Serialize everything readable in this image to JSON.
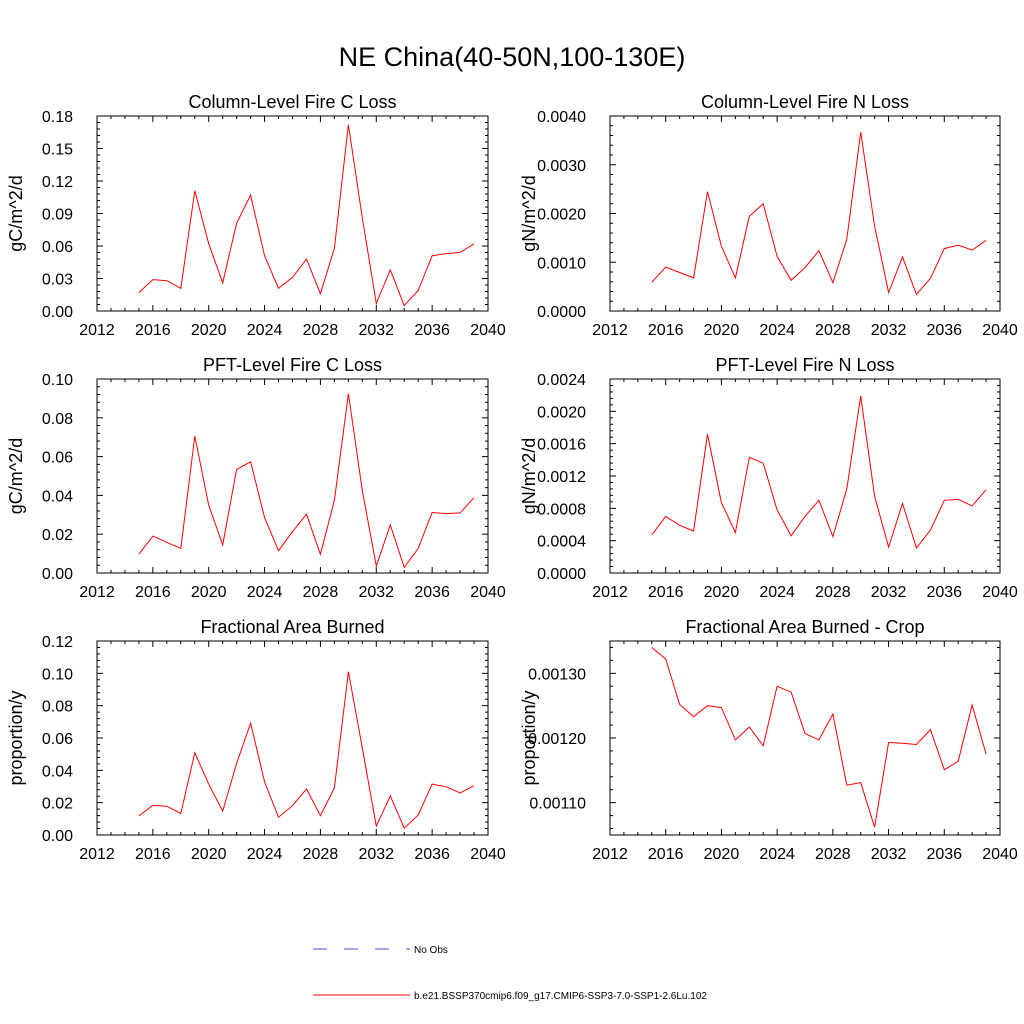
{
  "figure": {
    "title": "NE China(40-50N,100-130E)"
  },
  "legend": {
    "items": [
      {
        "label": "No Obs",
        "color": "#4a4ad6",
        "style": "dashed"
      },
      {
        "label": "b.e21.BSSP370cmip6.f09_g17.CMIP6-SSP3-7.0-SSP1-2.6Lu.102",
        "color": "#ff0000",
        "style": "solid"
      }
    ]
  },
  "chart_data": [
    {
      "type": "line",
      "title": "Column-Level Fire C Loss",
      "ylabel": "gC/m^2/d",
      "xlabel": "",
      "xlim": [
        2012,
        2040
      ],
      "ylim": [
        0,
        0.18
      ],
      "xticks": [
        "2012",
        "2016",
        "2020",
        "2024",
        "2028",
        "2032",
        "2036",
        "2040"
      ],
      "yticks": [
        "0.00",
        "0.03",
        "0.06",
        "0.09",
        "0.12",
        "0.15",
        "0.18"
      ],
      "grid": false,
      "series": [
        {
          "color": "#ff0000",
          "x": [
            2015,
            2016,
            2017,
            2018,
            2019,
            2020,
            2021,
            2022,
            2023,
            2024,
            2025,
            2026,
            2027,
            2028,
            2029,
            2030,
            2031,
            2032,
            2033,
            2034,
            2035,
            2036,
            2037,
            2038,
            2039
          ],
          "y": [
            0.017,
            0.029,
            0.028,
            0.021,
            0.111,
            0.062,
            0.026,
            0.081,
            0.107,
            0.051,
            0.021,
            0.031,
            0.048,
            0.016,
            0.058,
            0.172,
            0.086,
            0.007,
            0.038,
            0.005,
            0.019,
            0.051,
            0.053,
            0.054,
            0.062
          ]
        }
      ]
    },
    {
      "type": "line",
      "title": "Column-Level Fire N Loss",
      "ylabel": "gN/m^2/d",
      "xlabel": "",
      "xlim": [
        2012,
        2040
      ],
      "ylim": [
        0,
        0.004
      ],
      "xticks": [
        "2012",
        "2016",
        "2020",
        "2024",
        "2028",
        "2032",
        "2036",
        "2040"
      ],
      "yticks": [
        "0.0000",
        "0.0010",
        "0.0020",
        "0.0030",
        "0.0040"
      ],
      "grid": false,
      "series": [
        {
          "color": "#ff0000",
          "x": [
            2015,
            2016,
            2017,
            2018,
            2019,
            2020,
            2021,
            2022,
            2023,
            2024,
            2025,
            2026,
            2027,
            2028,
            2029,
            2030,
            2031,
            2032,
            2033,
            2034,
            2035,
            2036,
            2037,
            2038,
            2039
          ],
          "y": [
            0.00059,
            0.0009,
            0.00079,
            0.00068,
            0.00245,
            0.00133,
            0.00068,
            0.00194,
            0.0022,
            0.00112,
            0.00063,
            0.00089,
            0.00124,
            0.00058,
            0.00147,
            0.00367,
            0.00174,
            0.00038,
            0.00111,
            0.00034,
            0.00067,
            0.00128,
            0.00135,
            0.00125,
            0.00145
          ]
        }
      ]
    },
    {
      "type": "line",
      "title": "PFT-Level Fire C Loss",
      "ylabel": "gC/m^2/d",
      "xlabel": "",
      "xlim": [
        2012,
        2040
      ],
      "ylim": [
        0,
        0.1
      ],
      "xticks": [
        "2012",
        "2016",
        "2020",
        "2024",
        "2028",
        "2032",
        "2036",
        "2040"
      ],
      "yticks": [
        "0.00",
        "0.02",
        "0.04",
        "0.06",
        "0.08",
        "0.10"
      ],
      "grid": false,
      "series": [
        {
          "color": "#ff0000",
          "x": [
            2015,
            2016,
            2017,
            2018,
            2019,
            2020,
            2021,
            2022,
            2023,
            2024,
            2025,
            2026,
            2027,
            2028,
            2029,
            2030,
            2031,
            2032,
            2033,
            2034,
            2035,
            2036,
            2037,
            2038,
            2039
          ],
          "y": [
            0.0097,
            0.019,
            0.0158,
            0.0127,
            0.0705,
            0.035,
            0.0145,
            0.0534,
            0.0573,
            0.0285,
            0.0115,
            0.0213,
            0.0303,
            0.0096,
            0.0375,
            0.0925,
            0.0425,
            0.0036,
            0.0248,
            0.0029,
            0.0127,
            0.0312,
            0.0306,
            0.031,
            0.0388
          ]
        }
      ]
    },
    {
      "type": "line",
      "title": "PFT-Level Fire N Loss",
      "ylabel": "gN/m^2/d",
      "xlabel": "",
      "xlim": [
        2012,
        2040
      ],
      "ylim": [
        0,
        0.0024
      ],
      "xticks": [
        "2012",
        "2016",
        "2020",
        "2024",
        "2028",
        "2032",
        "2036",
        "2040"
      ],
      "yticks": [
        "0.0000",
        "0.0004",
        "0.0008",
        "0.0012",
        "0.0016",
        "0.0020",
        "0.0024"
      ],
      "grid": false,
      "series": [
        {
          "color": "#ff0000",
          "x": [
            2015,
            2016,
            2017,
            2018,
            2019,
            2020,
            2021,
            2022,
            2023,
            2024,
            2025,
            2026,
            2027,
            2028,
            2029,
            2030,
            2031,
            2032,
            2033,
            2034,
            2035,
            2036,
            2037,
            2038,
            2039
          ],
          "y": [
            0.00047,
            0.0007,
            0.00059,
            0.00052,
            0.00172,
            0.00087,
            0.0005,
            0.00143,
            0.00136,
            0.00078,
            0.00046,
            0.0007,
            0.0009,
            0.00045,
            0.00104,
            0.00219,
            0.00095,
            0.00032,
            0.00086,
            0.00031,
            0.00053,
            0.0009,
            0.00091,
            0.00083,
            0.00103
          ]
        }
      ]
    },
    {
      "type": "line",
      "title": "Fractional Area Burned",
      "ylabel": "proportion/y",
      "xlabel": "",
      "xlim": [
        2012,
        2040
      ],
      "ylim": [
        0,
        0.12
      ],
      "xticks": [
        "2012",
        "2016",
        "2020",
        "2024",
        "2028",
        "2032",
        "2036",
        "2040"
      ],
      "yticks": [
        "0.00",
        "0.02",
        "0.04",
        "0.06",
        "0.08",
        "0.10",
        "0.12"
      ],
      "grid": false,
      "series": [
        {
          "color": "#ff0000",
          "x": [
            2015,
            2016,
            2017,
            2018,
            2019,
            2020,
            2021,
            2022,
            2023,
            2024,
            2025,
            2026,
            2027,
            2028,
            2029,
            2030,
            2031,
            2032,
            2033,
            2034,
            2035,
            2036,
            2037,
            2038,
            2039
          ],
          "y": [
            0.0118,
            0.0183,
            0.0178,
            0.0133,
            0.0509,
            0.0315,
            0.0148,
            0.0443,
            0.0692,
            0.0328,
            0.011,
            0.0181,
            0.0285,
            0.012,
            0.0292,
            0.101,
            0.0538,
            0.0055,
            0.0242,
            0.0042,
            0.0123,
            0.0315,
            0.0298,
            0.026,
            0.0305
          ]
        }
      ]
    },
    {
      "type": "line",
      "title": "Fractional Area Burned - Crop",
      "ylabel": "proportion/y",
      "xlabel": "",
      "xlim": [
        2012,
        2040
      ],
      "ylim": [
        0.00105,
        0.00135
      ],
      "xticks": [
        "2012",
        "2016",
        "2020",
        "2024",
        "2028",
        "2032",
        "2036",
        "2040"
      ],
      "yticks": [
        "0.00110",
        "0.00120",
        "0.00130"
      ],
      "grid": false,
      "series": [
        {
          "color": "#ff0000",
          "x": [
            2015,
            2016,
            2017,
            2018,
            2019,
            2020,
            2021,
            2022,
            2023,
            2024,
            2025,
            2026,
            2027,
            2028,
            2029,
            2030,
            2031,
            2032,
            2033,
            2034,
            2035,
            2036,
            2037,
            2038,
            2039
          ],
          "y": [
            0.00134,
            0.001322,
            0.001252,
            0.001233,
            0.00125,
            0.001247,
            0.001197,
            0.001217,
            0.001188,
            0.00128,
            0.001271,
            0.001207,
            0.001197,
            0.001237,
            0.001127,
            0.001131,
            0.001062,
            0.001193,
            0.001192,
            0.00119,
            0.001213,
            0.001151,
            0.001164,
            0.001251,
            0.001175
          ]
        }
      ]
    }
  ]
}
